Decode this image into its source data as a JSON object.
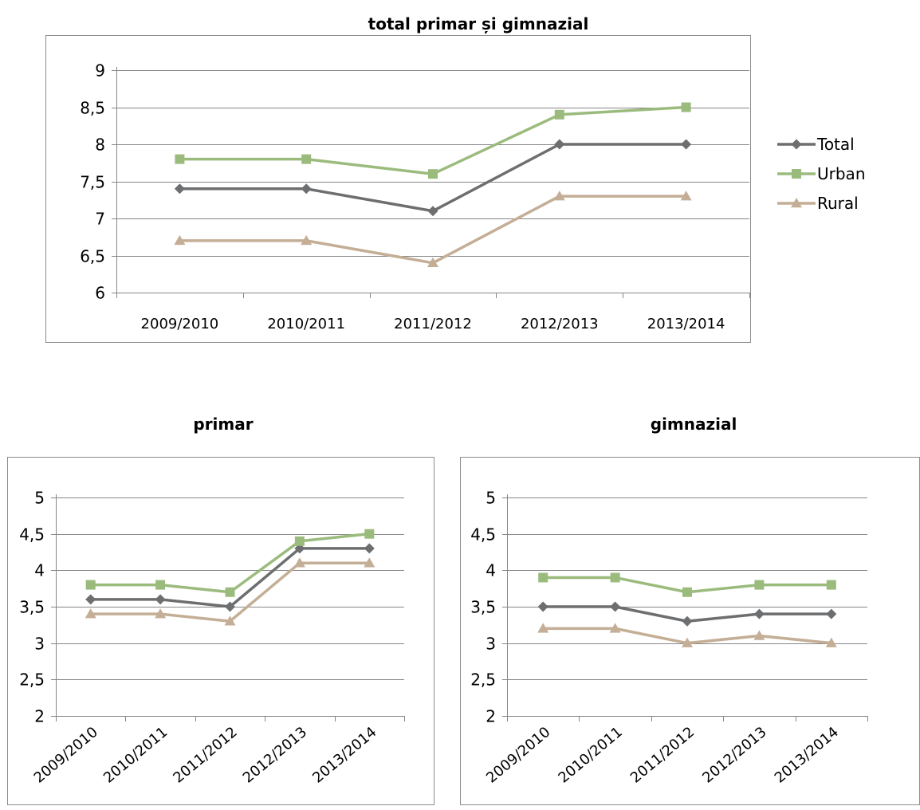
{
  "chart_data": [
    {
      "type": "line",
      "title": "total primar și gimnazial",
      "categories": [
        "2009/2010",
        "2010/2011",
        "2011/2012",
        "2012/2013",
        "2013/2014"
      ],
      "ylim": [
        6,
        9
      ],
      "yticks": [
        "6",
        "6,5",
        "7",
        "7,5",
        "8",
        "8,5",
        "9"
      ],
      "grid": true,
      "legend": "right",
      "series": [
        {
          "name": "Total",
          "values": [
            7.4,
            7.4,
            7.1,
            8.0,
            8.0
          ],
          "color": "#6d6e70",
          "marker": "diamond"
        },
        {
          "name": "Urban",
          "values": [
            7.8,
            7.8,
            7.6,
            8.4,
            8.5
          ],
          "color": "#9bbb7d",
          "marker": "square"
        },
        {
          "name": "Rural",
          "values": [
            6.7,
            6.7,
            6.4,
            7.3,
            7.3
          ],
          "color": "#c4ae96",
          "marker": "triangle"
        }
      ]
    },
    {
      "type": "line",
      "title": "primar",
      "categories": [
        "2009/2010",
        "2010/2011",
        "2011/2012",
        "2012/2013",
        "2013/2014"
      ],
      "ylim": [
        2,
        5
      ],
      "yticks": [
        "2",
        "2,5",
        "3",
        "3,5",
        "4",
        "4,5",
        "5"
      ],
      "grid": true,
      "series": [
        {
          "name": "Total",
          "values": [
            3.6,
            3.6,
            3.5,
            4.3,
            4.3
          ],
          "color": "#6d6e70",
          "marker": "diamond"
        },
        {
          "name": "Urban",
          "values": [
            3.8,
            3.8,
            3.7,
            4.4,
            4.5
          ],
          "color": "#9bbb7d",
          "marker": "square"
        },
        {
          "name": "Rural",
          "values": [
            3.4,
            3.4,
            3.3,
            4.1,
            4.1
          ],
          "color": "#c4ae96",
          "marker": "triangle"
        }
      ]
    },
    {
      "type": "line",
      "title": "gimnazial",
      "categories": [
        "2009/2010",
        "2010/2011",
        "2011/2012",
        "2012/2013",
        "2013/2014"
      ],
      "ylim": [
        2,
        5
      ],
      "yticks": [
        "2",
        "2,5",
        "3",
        "3,5",
        "4",
        "4,5",
        "5"
      ],
      "grid": true,
      "series": [
        {
          "name": "Total",
          "values": [
            3.5,
            3.5,
            3.3,
            3.4,
            3.4
          ],
          "color": "#6d6e70",
          "marker": "diamond"
        },
        {
          "name": "Urban",
          "values": [
            3.9,
            3.9,
            3.7,
            3.8,
            3.8
          ],
          "color": "#9bbb7d",
          "marker": "square"
        },
        {
          "name": "Rural",
          "values": [
            3.2,
            3.2,
            3.0,
            3.1,
            3.0
          ],
          "color": "#c4ae96",
          "marker": "triangle"
        }
      ]
    }
  ]
}
